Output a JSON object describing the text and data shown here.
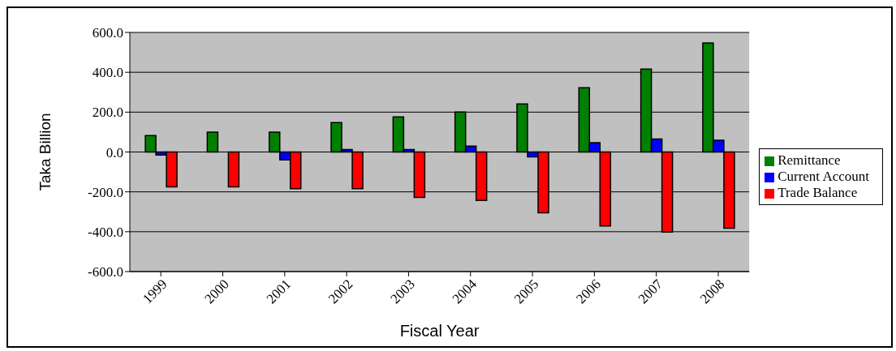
{
  "chart_data": {
    "type": "bar",
    "xlabel": "Fiscal Year",
    "ylabel": "Taka Billion",
    "categories": [
      "1999",
      "2000",
      "2001",
      "2002",
      "2003",
      "2004",
      "2005",
      "2006",
      "2007",
      "2008"
    ],
    "series": [
      {
        "name": "Remittance",
        "color": "#008000",
        "values": [
          82,
          100,
          100,
          147,
          176,
          200,
          241,
          322,
          416,
          547
        ]
      },
      {
        "name": "Current Account",
        "color": "#0000ff",
        "values": [
          -15,
          0,
          -40,
          12,
          12,
          30,
          -24,
          47,
          65,
          59
        ]
      },
      {
        "name": "Trade Balance",
        "color": "#ff0000",
        "values": [
          -175,
          -175,
          -184,
          -184,
          -228,
          -243,
          -305,
          -371,
          -402,
          -382
        ]
      }
    ],
    "ylim": [
      -600,
      600
    ],
    "yticks": [
      {
        "value": -600,
        "label": "-600.0"
      },
      {
        "value": -400,
        "label": "-400.0"
      },
      {
        "value": -200,
        "label": "-200.0"
      },
      {
        "value": 0,
        "label": "0.0"
      },
      {
        "value": 200,
        "label": "200.0"
      },
      {
        "value": 400,
        "label": "400.0"
      },
      {
        "value": 600,
        "label": "600.0"
      }
    ],
    "grid": "y",
    "legend": "right"
  }
}
